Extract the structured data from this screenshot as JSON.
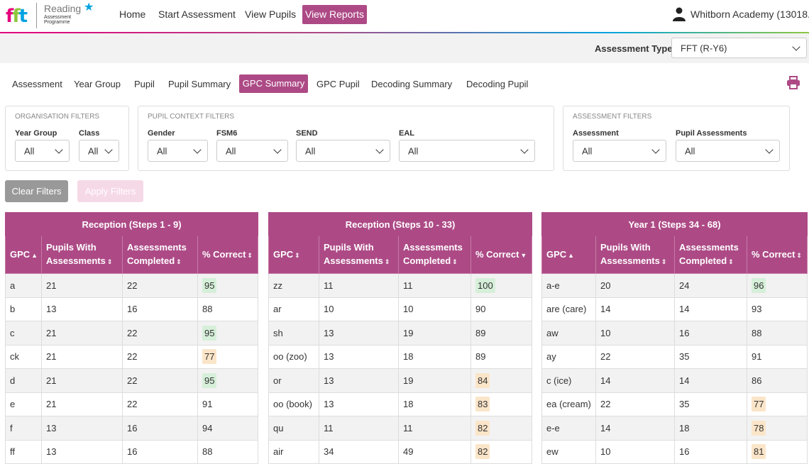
{
  "brand": {
    "product_line1": "Reading",
    "product_line2": "Assessment",
    "product_line3": "Programme"
  },
  "nav": {
    "home": "Home",
    "start": "Start Assessment",
    "pupils": "View Pupils",
    "reports": "View Reports"
  },
  "user": {
    "school": "Whitborn Academy (13018..."
  },
  "assessment_type": {
    "label": "Assessment Type",
    "value": "FFT (R-Y6)"
  },
  "tabs": {
    "assessment": "Assessment",
    "year_group": "Year Group",
    "pupil": "Pupil",
    "pupil_summary": "Pupil Summary",
    "gpc_summary": "GPC Summary",
    "gpc_pupil": "GPC Pupil",
    "decoding_summary": "Decoding Summary",
    "decoding_pupil": "Decoding Pupil"
  },
  "filters": {
    "org": {
      "title": "Organisation Filters",
      "year_group_label": "Year Group",
      "year_group_value": "All",
      "class_label": "Class",
      "class_value": "All"
    },
    "context": {
      "title": "Pupil Context Filters",
      "gender_label": "Gender",
      "gender_value": "All",
      "fsm6_label": "FSM6",
      "fsm6_value": "All",
      "send_label": "SEND",
      "send_value": "All",
      "eal_label": "EAL",
      "eal_value": "All"
    },
    "assessment": {
      "title": "Assessment Filters",
      "assessment_label": "Assessment",
      "assessment_value": "All",
      "pupil_assessments_label": "Pupil Assessments",
      "pupil_assessments_value": "All"
    },
    "clear": "Clear Filters",
    "apply": "Apply Filters"
  },
  "colors": {
    "accent": "#ad4a86",
    "high": "#d6efd9",
    "low": "#fbe5c9"
  },
  "tables": [
    {
      "title": "Reception (Steps 1 - 9)",
      "headers": {
        "gpc": "GPC",
        "pupils_1": "Pupils With",
        "pupils_2": "Assessments",
        "completed_1": "Assessments",
        "completed_2": "Completed",
        "correct": "% Correct"
      },
      "rows": [
        {
          "gpc": "a",
          "pupils": "21",
          "completed": "22",
          "correct": "95",
          "flag": "high"
        },
        {
          "gpc": "b",
          "pupils": "13",
          "completed": "16",
          "correct": "88",
          "flag": ""
        },
        {
          "gpc": "c",
          "pupils": "21",
          "completed": "22",
          "correct": "95",
          "flag": "high"
        },
        {
          "gpc": "ck",
          "pupils": "21",
          "completed": "22",
          "correct": "77",
          "flag": "low"
        },
        {
          "gpc": "d",
          "pupils": "21",
          "completed": "22",
          "correct": "95",
          "flag": "high"
        },
        {
          "gpc": "e",
          "pupils": "21",
          "completed": "22",
          "correct": "91",
          "flag": ""
        },
        {
          "gpc": "f",
          "pupils": "13",
          "completed": "16",
          "correct": "94",
          "flag": ""
        },
        {
          "gpc": "ff",
          "pupils": "13",
          "completed": "16",
          "correct": "88",
          "flag": ""
        }
      ]
    },
    {
      "title": "Reception (Steps 10 - 33)",
      "headers": {
        "gpc": "GPC",
        "pupils_1": "Pupils With",
        "pupils_2": "Assessments",
        "completed_1": "Assessments",
        "completed_2": "Completed",
        "correct": "% Correct"
      },
      "rows": [
        {
          "gpc": "zz",
          "pupils": "11",
          "completed": "11",
          "correct": "100",
          "flag": "high"
        },
        {
          "gpc": "ar",
          "pupils": "10",
          "completed": "10",
          "correct": "90",
          "flag": ""
        },
        {
          "gpc": "sh",
          "pupils": "13",
          "completed": "19",
          "correct": "89",
          "flag": ""
        },
        {
          "gpc": "oo (zoo)",
          "pupils": "13",
          "completed": "18",
          "correct": "89",
          "flag": ""
        },
        {
          "gpc": "or",
          "pupils": "13",
          "completed": "19",
          "correct": "84",
          "flag": "low"
        },
        {
          "gpc": "oo (book)",
          "pupils": "13",
          "completed": "18",
          "correct": "83",
          "flag": "low"
        },
        {
          "gpc": "qu",
          "pupils": "11",
          "completed": "11",
          "correct": "82",
          "flag": "low"
        },
        {
          "gpc": "air",
          "pupils": "34",
          "completed": "49",
          "correct": "82",
          "flag": "low"
        }
      ]
    },
    {
      "title": "Year 1 (Steps 34 - 68)",
      "headers": {
        "gpc": "GPC",
        "pupils_1": "Pupils With",
        "pupils_2": "Assessments",
        "completed_1": "Assessments",
        "completed_2": "Completed",
        "correct": "% Correct"
      },
      "rows": [
        {
          "gpc": "a-e",
          "pupils": "20",
          "completed": "24",
          "correct": "96",
          "flag": "high"
        },
        {
          "gpc": "are (care)",
          "pupils": "14",
          "completed": "14",
          "correct": "93",
          "flag": ""
        },
        {
          "gpc": "aw",
          "pupils": "10",
          "completed": "16",
          "correct": "88",
          "flag": ""
        },
        {
          "gpc": "ay",
          "pupils": "22",
          "completed": "35",
          "correct": "91",
          "flag": ""
        },
        {
          "gpc": "c (ice)",
          "pupils": "14",
          "completed": "14",
          "correct": "86",
          "flag": ""
        },
        {
          "gpc": "ea (cream)",
          "pupils": "22",
          "completed": "35",
          "correct": "77",
          "flag": "low"
        },
        {
          "gpc": "e-e",
          "pupils": "14",
          "completed": "18",
          "correct": "78",
          "flag": "low"
        },
        {
          "gpc": "ew",
          "pupils": "10",
          "completed": "16",
          "correct": "81",
          "flag": "low"
        }
      ]
    }
  ]
}
